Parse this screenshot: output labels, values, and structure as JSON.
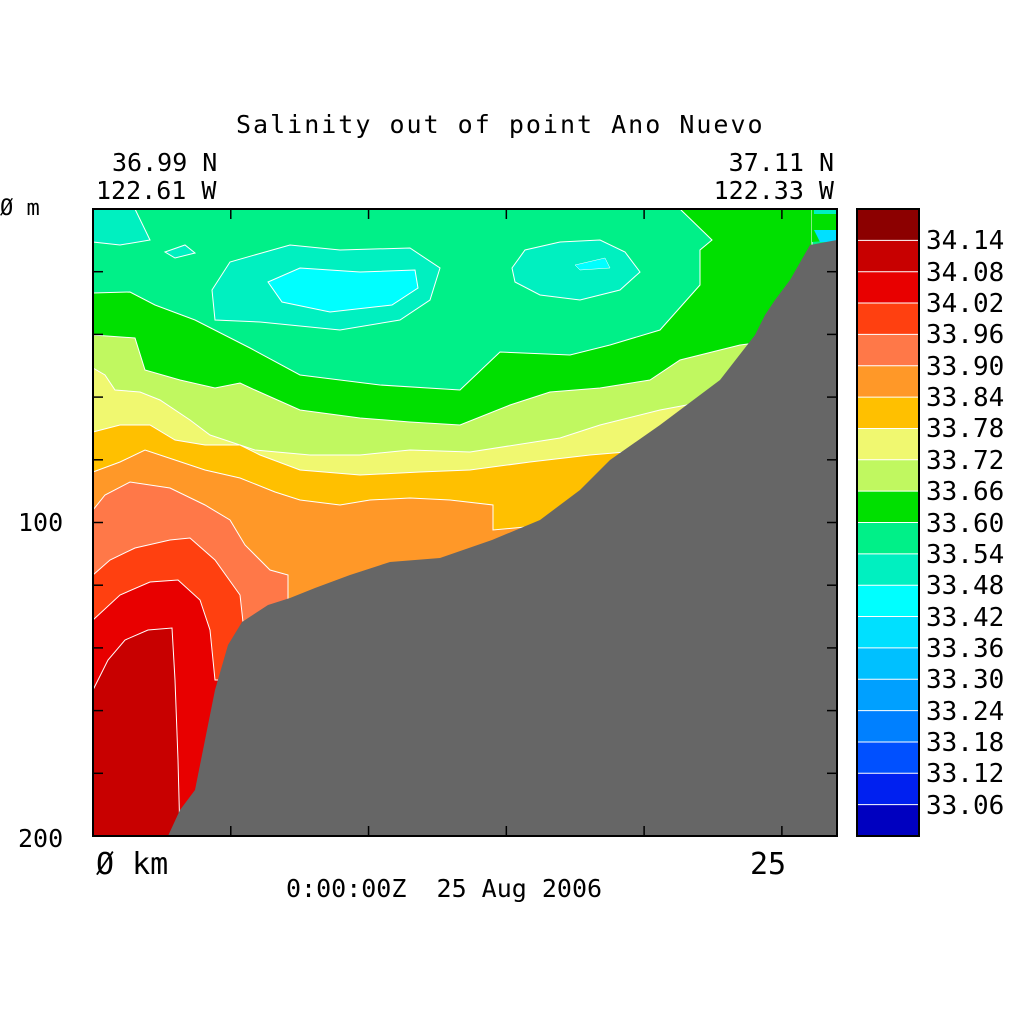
{
  "chart_data": {
    "type": "heatmap",
    "title": "Salinity out of point Ano Nuevo",
    "start_lat": "36.99 N",
    "start_lon": "122.61 W",
    "end_lat": "37.11 N",
    "end_lon": "122.33 W",
    "y_tick_labels": [
      "Ø m",
      "100",
      "200"
    ],
    "x_tick_labels": [
      "Ø km",
      "25"
    ],
    "timestamp": "0:00:00Z  25 Aug 2006",
    "x_range_km": [
      0,
      27
    ],
    "y_range_m": [
      0,
      200
    ],
    "x_ticks_km": [
      0,
      5,
      10,
      15,
      20,
      25
    ],
    "y_ticks_m": [
      0,
      20,
      40,
      60,
      80,
      100,
      120,
      140,
      160,
      180,
      200
    ],
    "colorbar": {
      "levels": [
        "34.14",
        "34.08",
        "34.02",
        "33.96",
        "33.90",
        "33.84",
        "33.78",
        "33.72",
        "33.66",
        "33.60",
        "33.54",
        "33.48",
        "33.42",
        "33.36",
        "33.30",
        "33.24",
        "33.18",
        "33.12",
        "33.06"
      ],
      "colors": [
        "#8c0000",
        "#c80000",
        "#e80000",
        "#ff4010",
        "#ff7848",
        "#ff9828",
        "#ffc000",
        "#f0f870",
        "#c0f860",
        "#00e000",
        "#00f088",
        "#00f0c0",
        "#00ffff",
        "#00e0ff",
        "#00c0ff",
        "#00a0ff",
        "#0080ff",
        "#0050ff",
        "#0020f0",
        "#0000c0"
      ]
    },
    "land_color": "#666666"
  }
}
